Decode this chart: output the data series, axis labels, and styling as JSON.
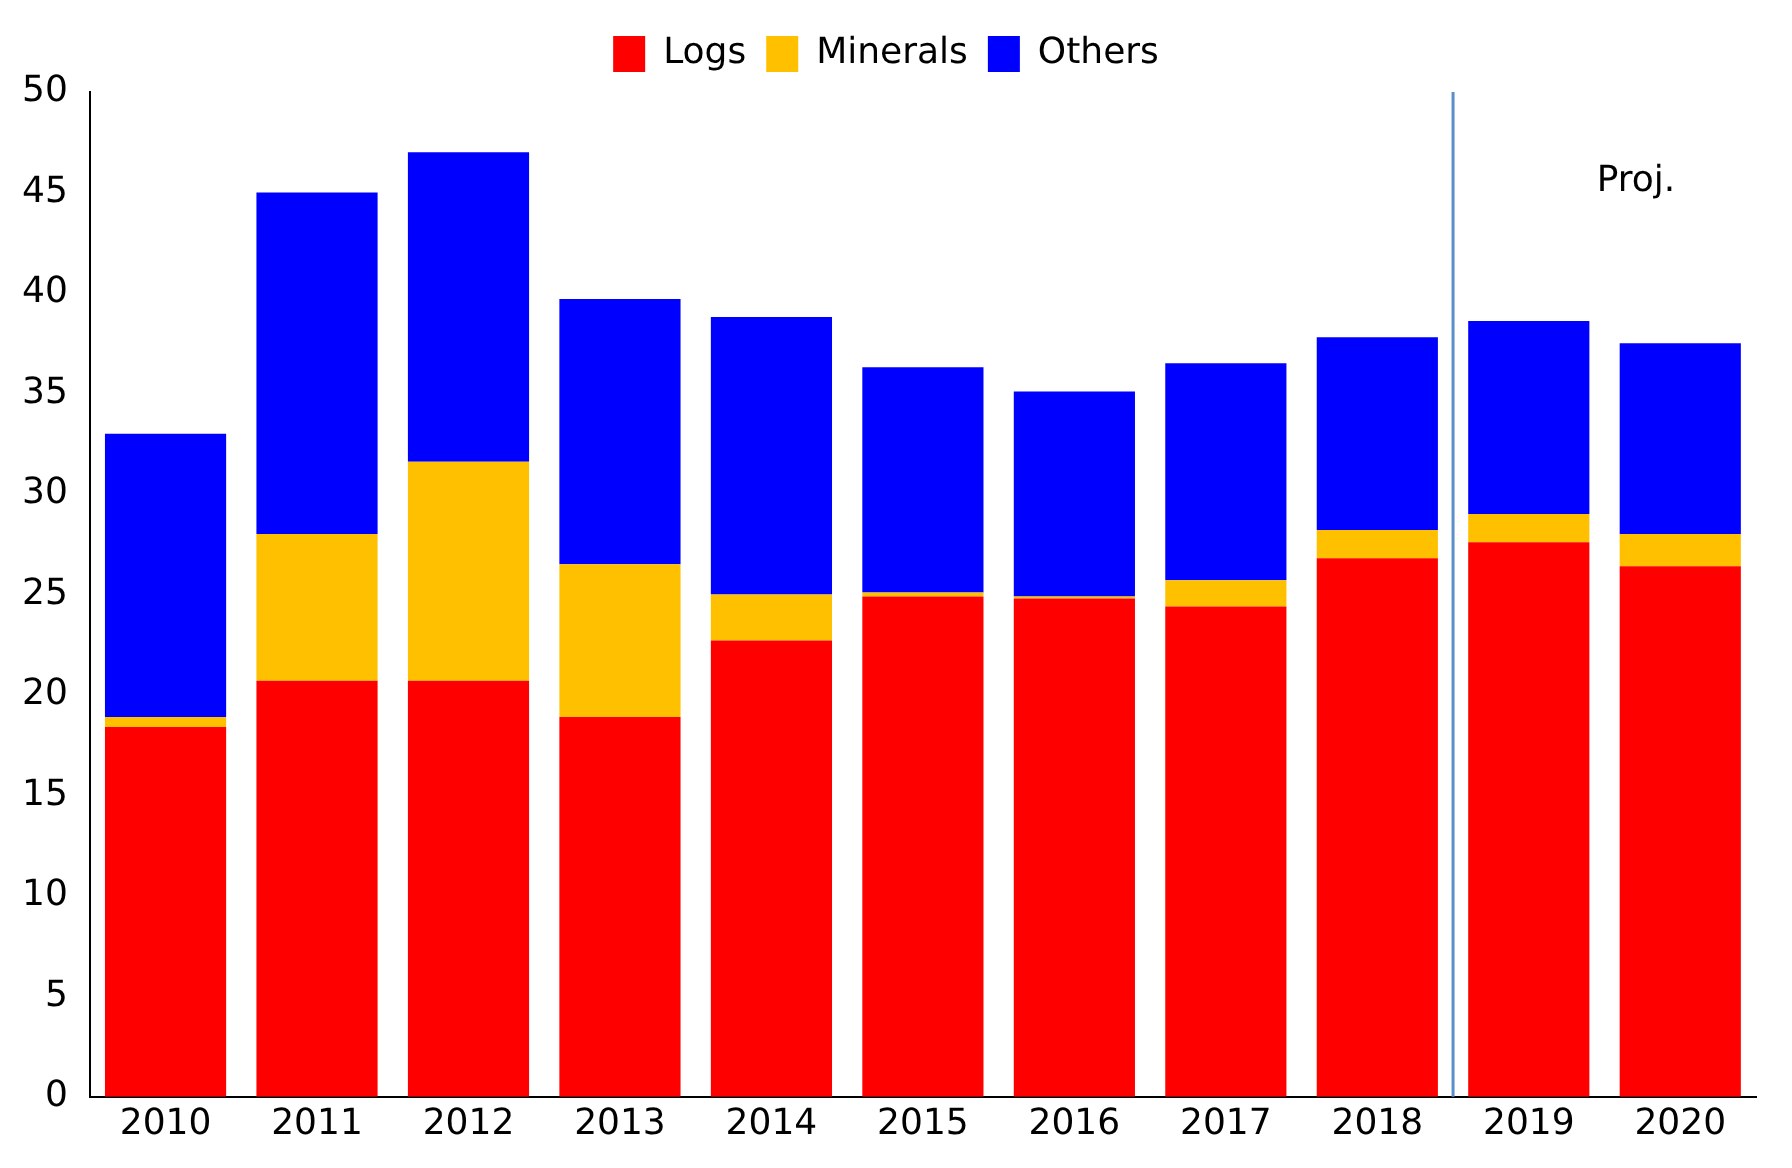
{
  "chart_data": {
    "type": "bar",
    "stacked": true,
    "categories": [
      "2010",
      "2011",
      "2012",
      "2013",
      "2014",
      "2015",
      "2016",
      "2017",
      "2018",
      "2019",
      "2020"
    ],
    "series": [
      {
        "name": "Logs",
        "color": "#ff0000",
        "values": [
          18.4,
          20.7,
          20.7,
          18.9,
          22.7,
          24.9,
          24.8,
          24.4,
          26.8,
          27.6,
          26.4
        ]
      },
      {
        "name": "Minerals",
        "color": "#ffc000",
        "values": [
          0.5,
          7.3,
          10.9,
          7.6,
          2.3,
          0.2,
          0.1,
          1.3,
          1.4,
          1.4,
          1.6
        ]
      },
      {
        "name": "Others",
        "color": "#0000ff",
        "values": [
          14.1,
          17,
          15.4,
          13.2,
          13.8,
          11.2,
          10.2,
          10.8,
          9.6,
          9.6,
          9.5
        ]
      }
    ],
    "ylim": [
      0,
      50
    ],
    "yticks": [
      0,
      5,
      10,
      15,
      20,
      25,
      30,
      35,
      40,
      45,
      50
    ],
    "grid": false,
    "legend": "top",
    "ref_lines": [
      {
        "axis": "x",
        "value": "2019",
        "color": "#5b8fc9"
      }
    ],
    "annotations": [
      "Proj."
    ]
  }
}
